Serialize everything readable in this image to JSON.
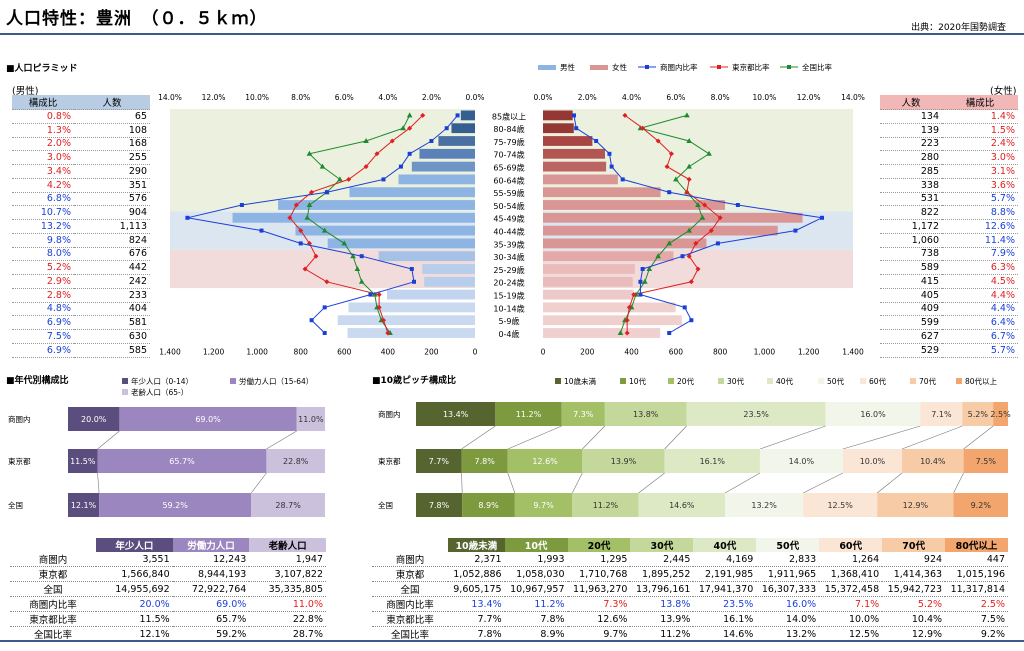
{
  "header": {
    "title": "人口特性：豊洲　（０．５ｋｍ）",
    "source": "出典：2020年国勢調査"
  },
  "pyramid": {
    "section_title": "■人口ピラミッド",
    "legend": [
      "男性",
      "女性",
      "商圏内比率",
      "東京都比率",
      "全国比率"
    ],
    "left_head": "(男性)",
    "right_head": "(女性)",
    "col_ratio": "構成比",
    "col_count": "人数",
    "top_axis_left": [
      "14.0%",
      "12.0%",
      "10.0%",
      "8.0%",
      "6.0%",
      "4.0%",
      "2.0%",
      "0.0%"
    ],
    "top_axis_right": [
      "0.0%",
      "2.0%",
      "4.0%",
      "6.0%",
      "8.0%",
      "10.0%",
      "12.0%",
      "14.0%"
    ],
    "bottom_axis_left": [
      "1,400",
      "1,200",
      "1,000",
      "800",
      "600",
      "400",
      "200",
      "0"
    ],
    "bottom_axis_right": [
      "0",
      "200",
      "400",
      "600",
      "800",
      "1,000",
      "1,200",
      "1,400"
    ],
    "ages": [
      "85歳以上",
      "80-84歳",
      "75-79歳",
      "70-74歳",
      "65-69歳",
      "60-64歳",
      "55-59歳",
      "50-54歳",
      "45-49歳",
      "40-44歳",
      "35-39歳",
      "30-34歳",
      "25-29歳",
      "20-24歳",
      "15-19歳",
      "10-14歳",
      "5-9歳",
      "0-4歳"
    ],
    "male_ratio": [
      "0.8%",
      "1.3%",
      "2.0%",
      "3.0%",
      "3.4%",
      "4.2%",
      "6.8%",
      "10.7%",
      "13.2%",
      "9.8%",
      "8.0%",
      "5.2%",
      "2.9%",
      "2.8%",
      "4.8%",
      "6.9%",
      "7.5%",
      "6.9%"
    ],
    "male_count": [
      "65",
      "108",
      "168",
      "255",
      "290",
      "351",
      "576",
      "904",
      "1,113",
      "824",
      "676",
      "442",
      "242",
      "233",
      "404",
      "581",
      "630",
      "585"
    ],
    "female_ratio": [
      "1.4%",
      "1.5%",
      "2.4%",
      "3.0%",
      "3.1%",
      "3.6%",
      "5.7%",
      "8.8%",
      "12.6%",
      "11.4%",
      "7.9%",
      "6.3%",
      "4.5%",
      "4.4%",
      "4.4%",
      "6.4%",
      "6.7%",
      "5.7%"
    ],
    "female_count": [
      "134",
      "139",
      "223",
      "280",
      "285",
      "338",
      "531",
      "822",
      "1,172",
      "1,060",
      "738",
      "589",
      "415",
      "405",
      "409",
      "599",
      "627",
      "529"
    ],
    "male_values": [
      65,
      108,
      168,
      255,
      290,
      351,
      576,
      904,
      1113,
      824,
      676,
      442,
      242,
      233,
      404,
      581,
      630,
      585
    ],
    "female_values": [
      134,
      139,
      223,
      280,
      285,
      338,
      531,
      822,
      1172,
      1060,
      738,
      589,
      415,
      405,
      409,
      599,
      627,
      529
    ],
    "male_area_pct": [
      0.8,
      1.3,
      2.0,
      3.0,
      3.4,
      4.2,
      6.8,
      10.7,
      13.2,
      9.8,
      8.0,
      5.2,
      2.9,
      2.8,
      4.8,
      6.9,
      7.5,
      6.9
    ],
    "female_area_pct": [
      1.4,
      1.5,
      2.4,
      3.0,
      3.1,
      3.6,
      5.7,
      8.8,
      12.6,
      11.4,
      7.9,
      6.3,
      4.5,
      4.4,
      4.4,
      6.4,
      6.7,
      5.7
    ],
    "male_tokyo_pct": [
      2.4,
      3.0,
      3.8,
      4.5,
      5.0,
      5.8,
      7.5,
      8.2,
      8.5,
      8.0,
      7.6,
      7.3,
      7.8,
      6.8,
      4.4,
      4.4,
      4.2,
      4.0
    ],
    "female_tokyo_pct": [
      3.7,
      4.5,
      5.2,
      5.8,
      5.6,
      6.6,
      6.5,
      7.3,
      8.0,
      7.6,
      6.9,
      6.6,
      7.0,
      6.7,
      4.1,
      3.9,
      3.8,
      3.8
    ],
    "male_national_pct": [
      3.0,
      3.3,
      5.0,
      7.6,
      7.0,
      6.2,
      6.8,
      7.6,
      7.7,
      6.9,
      6.0,
      5.6,
      5.4,
      5.2,
      4.6,
      4.5,
      4.3,
      3.9
    ],
    "female_national_pct": [
      6.5,
      4.4,
      6.6,
      7.5,
      6.6,
      6.0,
      6.5,
      7.0,
      7.2,
      6.6,
      5.7,
      5.2,
      4.8,
      4.6,
      4.2,
      4.0,
      3.7,
      3.5
    ]
  },
  "age3": {
    "section_title": "■年代別構成比",
    "legend": [
      "年少人口（0-14）",
      "労働力人口（15-64）",
      "老齢人口（65-）"
    ],
    "colors": [
      "#5b4e7e",
      "#9c86bf",
      "#cbc1dd"
    ],
    "rows": [
      {
        "label": "商圏内",
        "values": [
          20.0,
          69.0,
          11.0
        ],
        "texts": [
          "20.0%",
          "69.0%",
          "11.0%"
        ]
      },
      {
        "label": "東京都",
        "values": [
          11.5,
          65.7,
          22.8
        ],
        "texts": [
          "11.5%",
          "65.7%",
          "22.8%"
        ]
      },
      {
        "label": "全国",
        "values": [
          12.1,
          59.2,
          28.7
        ],
        "texts": [
          "12.1%",
          "59.2%",
          "28.7%"
        ]
      }
    ],
    "table": {
      "headers": [
        "年少人口",
        "労働力人口",
        "老齢人口"
      ],
      "rows": [
        {
          "label": "商圏内",
          "cells": [
            "3,551",
            "12,243",
            "1,947"
          ]
        },
        {
          "label": "東京都",
          "cells": [
            "1,566,840",
            "8,944,193",
            "3,107,822"
          ]
        },
        {
          "label": "全国",
          "cells": [
            "14,955,692",
            "72,922,764",
            "35,335,805"
          ]
        },
        {
          "label": "商圏内比率",
          "cells": [
            "20.0%",
            "69.0%",
            "11.0%"
          ]
        },
        {
          "label": "東京都比率",
          "cells": [
            "11.5%",
            "65.7%",
            "22.8%"
          ]
        },
        {
          "label": "全国比率",
          "cells": [
            "12.1%",
            "59.2%",
            "28.7%"
          ]
        }
      ]
    }
  },
  "age10": {
    "section_title": "■10歳ピッチ構成比",
    "legend": [
      "10歳未満",
      "10代",
      "20代",
      "30代",
      "40代",
      "50代",
      "60代",
      "70代",
      "80代以上"
    ],
    "colors": [
      "#56642f",
      "#7d9a3e",
      "#a3c067",
      "#c5d89b",
      "#dde9c5",
      "#f2f6ea",
      "#fbe6d6",
      "#f7cba5",
      "#f2a56d"
    ],
    "rows": [
      {
        "label": "商圏内",
        "values": [
          13.4,
          11.2,
          7.3,
          13.8,
          23.5,
          16.0,
          7.1,
          5.2,
          2.5
        ],
        "texts": [
          "13.4%",
          "11.2%",
          "7.3%",
          "13.8%",
          "23.5%",
          "16.0%",
          "7.1%",
          "5.2%",
          "2.5%"
        ]
      },
      {
        "label": "東京都",
        "values": [
          7.7,
          7.8,
          12.6,
          13.9,
          16.1,
          14.0,
          10.0,
          10.4,
          7.5
        ],
        "texts": [
          "7.7%",
          "7.8%",
          "12.6%",
          "13.9%",
          "16.1%",
          "14.0%",
          "10.0%",
          "10.4%",
          "7.5%"
        ]
      },
      {
        "label": "全国",
        "values": [
          7.8,
          8.9,
          9.7,
          11.2,
          14.6,
          13.2,
          12.5,
          12.9,
          9.2
        ],
        "texts": [
          "7.8%",
          "8.9%",
          "9.7%",
          "11.2%",
          "14.6%",
          "13.2%",
          "12.5%",
          "12.9%",
          "9.2%"
        ]
      }
    ],
    "table": {
      "headers": [
        "10歳未満",
        "10代",
        "20代",
        "30代",
        "40代",
        "50代",
        "60代",
        "70代",
        "80代以上"
      ],
      "rows": [
        {
          "label": "商圏内",
          "cells": [
            "2,371",
            "1,993",
            "1,295",
            "2,445",
            "4,169",
            "2,833",
            "1,264",
            "924",
            "447"
          ]
        },
        {
          "label": "東京都",
          "cells": [
            "1,052,886",
            "1,058,030",
            "1,710,768",
            "1,895,252",
            "2,191,985",
            "1,911,965",
            "1,368,410",
            "1,414,363",
            "1,015,196"
          ]
        },
        {
          "label": "全国",
          "cells": [
            "9,605,175",
            "10,967,957",
            "11,963,270",
            "13,796,161",
            "17,941,370",
            "16,307,333",
            "15,372,458",
            "15,942,723",
            "11,317,814"
          ]
        },
        {
          "label": "商圏内比率",
          "cells": [
            "13.4%",
            "11.2%",
            "7.3%",
            "13.8%",
            "23.5%",
            "16.0%",
            "7.1%",
            "5.2%",
            "2.5%"
          ]
        },
        {
          "label": "東京都比率",
          "cells": [
            "7.7%",
            "7.8%",
            "12.6%",
            "13.9%",
            "16.1%",
            "14.0%",
            "10.0%",
            "10.4%",
            "7.5%"
          ]
        },
        {
          "label": "全国比率",
          "cells": [
            "7.8%",
            "8.9%",
            "9.7%",
            "11.2%",
            "14.6%",
            "13.2%",
            "12.5%",
            "12.9%",
            "9.2%"
          ]
        }
      ]
    }
  },
  "chart_data": [
    {
      "type": "bar",
      "title": "人口ピラミッド",
      "categories": [
        "85歳以上",
        "80-84歳",
        "75-79歳",
        "70-74歳",
        "65-69歳",
        "60-64歳",
        "55-59歳",
        "50-54歳",
        "45-49歳",
        "40-44歳",
        "35-39歳",
        "30-34歳",
        "25-29歳",
        "20-24歳",
        "15-19歳",
        "10-14歳",
        "5-9歳",
        "0-4歳"
      ],
      "series": [
        {
          "name": "男性",
          "values": [
            65,
            108,
            168,
            255,
            290,
            351,
            576,
            904,
            1113,
            824,
            676,
            442,
            242,
            233,
            404,
            581,
            630,
            585
          ]
        },
        {
          "name": "女性",
          "values": [
            134,
            139,
            223,
            280,
            285,
            338,
            531,
            822,
            1172,
            1060,
            738,
            589,
            415,
            405,
            409,
            599,
            627,
            529
          ]
        }
      ],
      "xlim": [
        0,
        1400
      ]
    },
    {
      "type": "bar",
      "title": "年代別構成比",
      "categories": [
        "商圏内",
        "東京都",
        "全国"
      ],
      "series": [
        {
          "name": "年少人口（0-14）",
          "values": [
            20.0,
            11.5,
            12.1
          ]
        },
        {
          "name": "労働力人口（15-64）",
          "values": [
            69.0,
            65.7,
            59.2
          ]
        },
        {
          "name": "老齢人口（65-）",
          "values": [
            11.0,
            22.8,
            28.7
          ]
        }
      ]
    },
    {
      "type": "bar",
      "title": "10歳ピッチ構成比",
      "categories": [
        "商圏内",
        "東京都",
        "全国"
      ],
      "series": [
        {
          "name": "10歳未満",
          "values": [
            13.4,
            7.7,
            7.8
          ]
        },
        {
          "name": "10代",
          "values": [
            11.2,
            7.8,
            8.9
          ]
        },
        {
          "name": "20代",
          "values": [
            7.3,
            12.6,
            9.7
          ]
        },
        {
          "name": "30代",
          "values": [
            13.8,
            13.9,
            11.2
          ]
        },
        {
          "name": "40代",
          "values": [
            23.5,
            16.1,
            14.6
          ]
        },
        {
          "name": "50代",
          "values": [
            16.0,
            14.0,
            13.2
          ]
        },
        {
          "name": "60代",
          "values": [
            7.1,
            10.0,
            12.5
          ]
        },
        {
          "name": "70代",
          "values": [
            5.2,
            10.4,
            12.9
          ]
        },
        {
          "name": "80代以上",
          "values": [
            2.5,
            7.5,
            9.2
          ]
        }
      ]
    }
  ]
}
